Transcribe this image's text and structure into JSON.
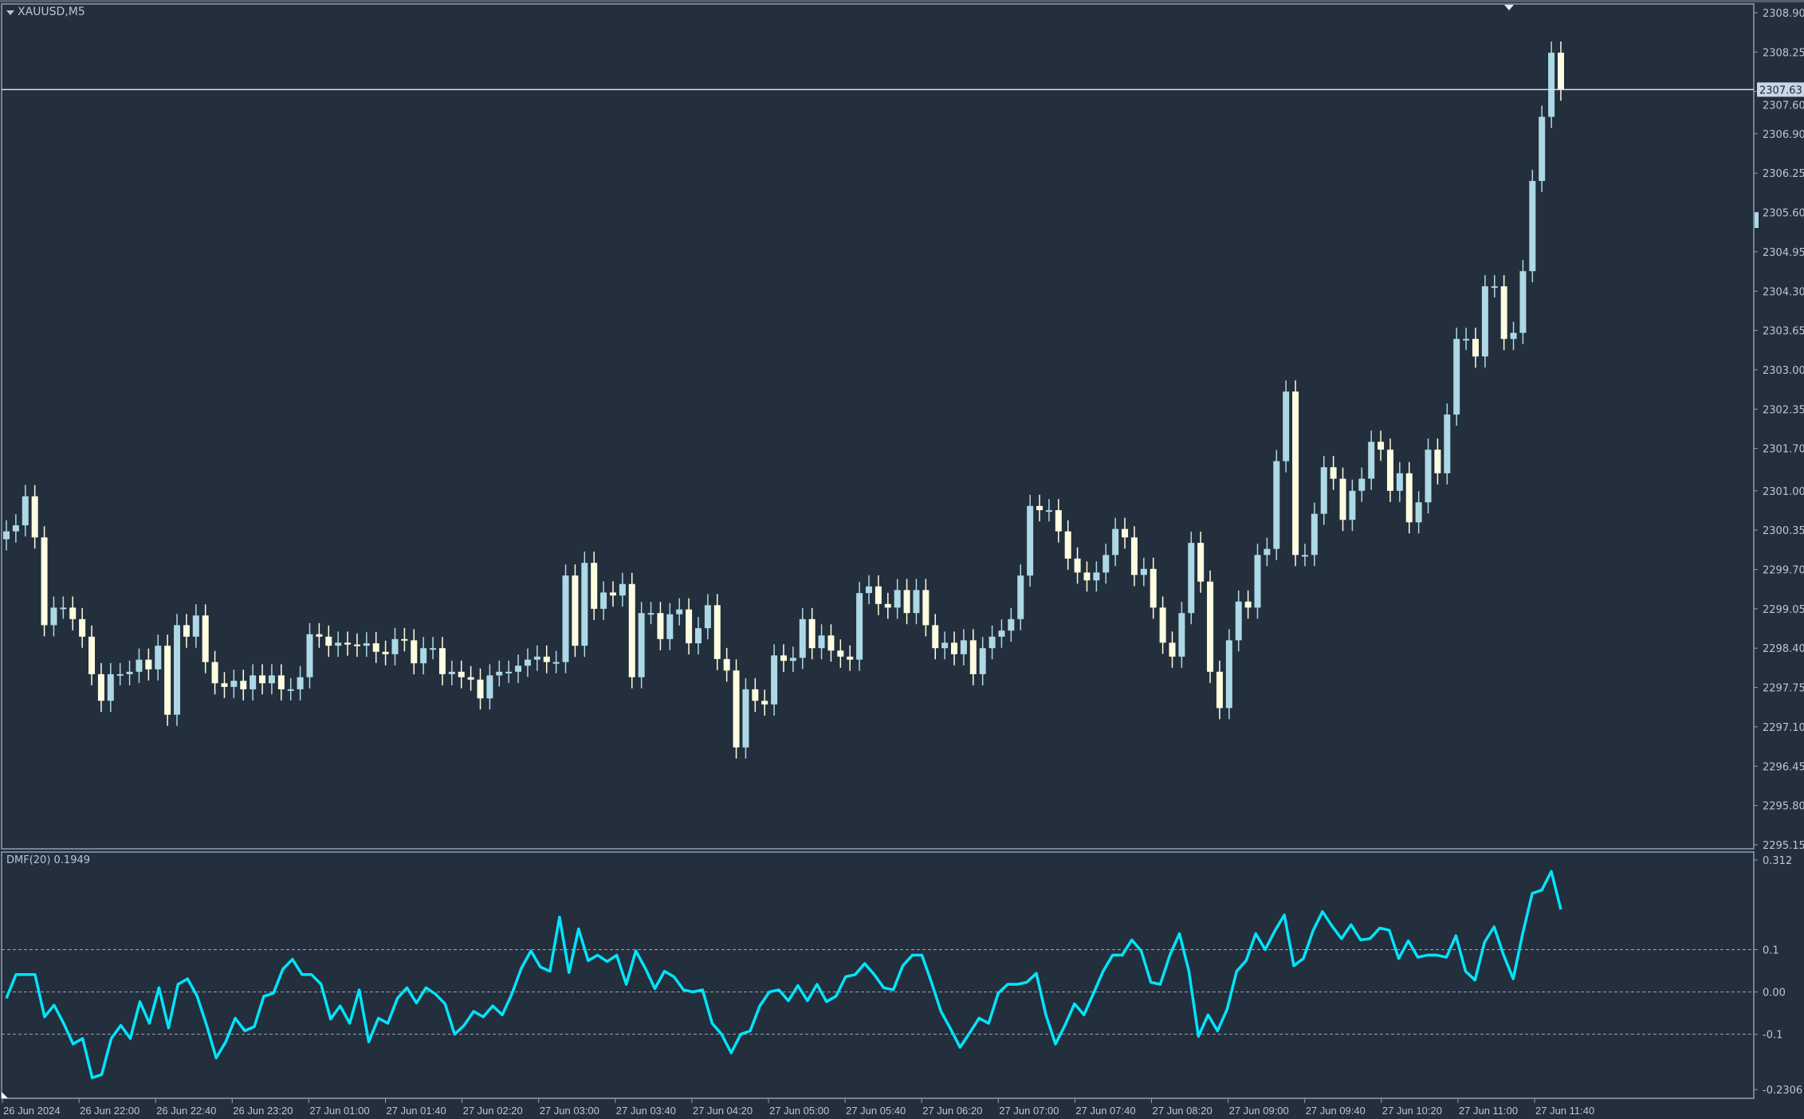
{
  "window": {
    "symbol_label": "XAUUSD,M5",
    "indicator_label": "DMF(20) 0.1949"
  },
  "colors": {
    "background": "#232f3c",
    "bull": "#add8e6",
    "bear": "#fffde0",
    "dmf_line": "#00e5ff",
    "grid_border": "#8f9fb3",
    "price_line": "#d8dde3"
  },
  "chart_data": [
    {
      "type": "candlestick",
      "title": "XAUUSD,M5",
      "current_price": 2307.63,
      "ylim": [
        2295.15,
        2308.9
      ],
      "y_ticks": [
        "2308.90",
        "2308.25",
        "2307.60",
        "2306.90",
        "2306.25",
        "2305.60",
        "2304.95",
        "2304.30",
        "2303.65",
        "2303.00",
        "2302.35",
        "2301.70",
        "2301.00",
        "2300.35",
        "2299.70",
        "2299.05",
        "2298.40",
        "2297.75",
        "2297.10",
        "2296.45",
        "2295.80",
        "2295.15"
      ],
      "x_ticks": [
        "26 Jun 2024",
        "26 Jun 22:00",
        "26 Jun 22:40",
        "26 Jun 23:20",
        "27 Jun 01:00",
        "27 Jun 01:40",
        "27 Jun 02:20",
        "27 Jun 03:00",
        "27 Jun 03:40",
        "27 Jun 04:20",
        "27 Jun 05:00",
        "27 Jun 05:40",
        "27 Jun 06:20",
        "27 Jun 07:00",
        "27 Jun 07:40",
        "27 Jun 08:20",
        "27 Jun 09:00",
        "27 Jun 09:40",
        "27 Jun 10:20",
        "27 Jun 11:00",
        "27 Jun 11:40"
      ],
      "open": [
        2300.2,
        2300.33,
        2300.43,
        2300.91,
        2300.23,
        2298.78,
        2299.07,
        2299.07,
        2298.88,
        2298.59,
        2297.97,
        2297.53,
        2297.97,
        2297.97,
        2298.01,
        2298.21,
        2298.05,
        2298.44,
        2297.3,
        2298.78,
        2298.59,
        2298.94,
        2298.17,
        2297.82,
        2297.76,
        2297.86,
        2297.72,
        2297.95,
        2297.82,
        2297.95,
        2297.72,
        2297.72,
        2297.92,
        2298.63,
        2298.59,
        2298.44,
        2298.49,
        2298.46,
        2298.44,
        2298.48,
        2298.34,
        2298.3,
        2298.55,
        2298.53,
        2298.15,
        2298.4,
        2298.4,
        2297.97,
        2298.01,
        2297.92,
        2297.88,
        2297.57,
        2297.95,
        2298.01,
        2298.01,
        2298.11,
        2298.21,
        2298.26,
        2298.17,
        2298.17,
        2299.6,
        2298.44,
        2299.81,
        2299.05,
        2299.32,
        2299.27,
        2299.46,
        2297.92,
        2298.98,
        2298.98,
        2298.55,
        2298.96,
        2299.04,
        2298.48,
        2298.73,
        2299.11,
        2298.22,
        2298.03,
        2296.76,
        2297.72,
        2297.53,
        2297.47,
        2298.28,
        2298.19,
        2298.24,
        2298.88,
        2298.4,
        2298.61,
        2298.36,
        2298.26,
        2298.21,
        2299.31,
        2299.42,
        2299.13,
        2299.07,
        2299.36,
        2298.98,
        2299.36,
        2298.78,
        2298.4,
        2298.49,
        2298.3,
        2298.53,
        2297.97,
        2298.4,
        2298.59,
        2298.69,
        2298.88,
        2299.6,
        2300.75,
        2300.68,
        2300.68,
        2300.33,
        2299.88,
        2299.65,
        2299.52,
        2299.65,
        2299.94,
        2300.37,
        2300.23,
        2299.61,
        2299.71,
        2299.07,
        2298.49,
        2298.26,
        2298.98,
        2300.14,
        2299.5,
        2298.01,
        2297.41,
        2298.53,
        2299.17,
        2299.07,
        2299.94,
        2300.04,
        2301.49,
        2302.64,
        2299.94,
        2299.94,
        2300.62,
        2301.39,
        2301.2,
        2300.52,
        2301.0,
        2301.2,
        2301.81,
        2301.68,
        2301.0,
        2301.29,
        2300.48,
        2300.81,
        2301.68,
        2301.29,
        2302.26,
        2303.51,
        2303.51,
        2303.22,
        2304.38,
        2304.38,
        2303.51,
        2303.61,
        2304.63,
        2306.12,
        2307.18,
        2308.24
      ],
      "close": [
        2300.33,
        2300.43,
        2300.91,
        2300.23,
        2298.78,
        2299.07,
        2299.07,
        2298.88,
        2298.59,
        2297.97,
        2297.53,
        2297.97,
        2297.97,
        2298.01,
        2298.21,
        2298.05,
        2298.44,
        2297.3,
        2298.78,
        2298.59,
        2298.94,
        2298.17,
        2297.82,
        2297.76,
        2297.86,
        2297.72,
        2297.95,
        2297.82,
        2297.95,
        2297.72,
        2297.72,
        2297.92,
        2298.63,
        2298.59,
        2298.44,
        2298.49,
        2298.46,
        2298.44,
        2298.48,
        2298.34,
        2298.3,
        2298.55,
        2298.53,
        2298.15,
        2298.4,
        2298.4,
        2297.97,
        2298.01,
        2297.92,
        2297.88,
        2297.57,
        2297.95,
        2298.01,
        2298.01,
        2298.11,
        2298.21,
        2298.26,
        2298.17,
        2298.17,
        2299.6,
        2298.44,
        2299.81,
        2299.05,
        2299.32,
        2299.27,
        2299.46,
        2297.92,
        2298.98,
        2298.98,
        2298.55,
        2298.96,
        2299.04,
        2298.48,
        2298.73,
        2299.11,
        2298.22,
        2298.03,
        2296.76,
        2297.72,
        2297.53,
        2297.47,
        2298.28,
        2298.19,
        2298.24,
        2298.88,
        2298.4,
        2298.61,
        2298.36,
        2298.26,
        2298.21,
        2299.31,
        2299.42,
        2299.13,
        2299.07,
        2299.36,
        2298.98,
        2299.36,
        2298.78,
        2298.4,
        2298.49,
        2298.3,
        2298.53,
        2297.97,
        2298.4,
        2298.59,
        2298.69,
        2298.88,
        2299.6,
        2300.75,
        2300.68,
        2300.68,
        2300.33,
        2299.88,
        2299.65,
        2299.52,
        2299.65,
        2299.94,
        2300.37,
        2300.23,
        2299.61,
        2299.71,
        2299.07,
        2298.49,
        2298.26,
        2298.98,
        2300.14,
        2299.5,
        2298.01,
        2297.41,
        2298.53,
        2299.17,
        2299.07,
        2299.94,
        2300.04,
        2301.49,
        2302.64,
        2299.94,
        2299.94,
        2300.62,
        2301.39,
        2301.2,
        2300.52,
        2301.0,
        2301.2,
        2301.81,
        2301.68,
        2301.0,
        2301.29,
        2300.48,
        2300.81,
        2301.68,
        2301.29,
        2302.26,
        2303.51,
        2303.51,
        2303.22,
        2304.38,
        2304.38,
        2303.51,
        2303.61,
        2304.63,
        2306.12,
        2307.18,
        2308.24,
        2307.63
      ]
    },
    {
      "type": "line",
      "title": "DMF(20) 0.1949",
      "current_value": 0.1949,
      "ylim": [
        -0.2306,
        0.312
      ],
      "y_ticks": [
        "0.312",
        "0.1",
        "0.00",
        "-0.1",
        "-0.2306"
      ],
      "levels": [
        0.1,
        0.0,
        -0.1
      ],
      "values": [
        -0.015,
        0.041,
        0.041,
        0.041,
        -0.059,
        -0.031,
        -0.074,
        -0.123,
        -0.11,
        -0.203,
        -0.195,
        -0.11,
        -0.079,
        -0.11,
        -0.023,
        -0.074,
        0.01,
        -0.085,
        0.018,
        0.031,
        -0.01,
        -0.079,
        -0.156,
        -0.118,
        -0.062,
        -0.092,
        -0.082,
        -0.01,
        -0.003,
        0.054,
        0.077,
        0.041,
        0.041,
        0.018,
        -0.064,
        -0.033,
        -0.074,
        0.005,
        -0.118,
        -0.062,
        -0.074,
        -0.015,
        0.01,
        -0.026,
        0.01,
        -0.005,
        -0.028,
        -0.1,
        -0.079,
        -0.046,
        -0.059,
        -0.033,
        -0.054,
        -0.005,
        0.056,
        0.097,
        0.059,
        0.049,
        0.177,
        0.046,
        0.149,
        0.074,
        0.087,
        0.072,
        0.087,
        0.018,
        0.097,
        0.056,
        0.008,
        0.049,
        0.036,
        0.005,
        0.0,
        0.005,
        -0.074,
        -0.1,
        -0.144,
        -0.1,
        -0.092,
        -0.033,
        0.0,
        0.005,
        -0.021,
        0.015,
        -0.021,
        0.018,
        -0.023,
        -0.01,
        0.036,
        0.041,
        0.067,
        0.041,
        0.01,
        0.005,
        0.062,
        0.087,
        0.087,
        0.023,
        -0.046,
        -0.087,
        -0.131,
        -0.097,
        -0.062,
        -0.074,
        -0.003,
        0.018,
        0.018,
        0.023,
        0.044,
        -0.054,
        -0.123,
        -0.079,
        -0.028,
        -0.054,
        -0.003,
        0.049,
        0.087,
        0.087,
        0.123,
        0.097,
        0.023,
        0.018,
        0.087,
        0.138,
        0.049,
        -0.105,
        -0.054,
        -0.092,
        -0.041,
        0.049,
        0.074,
        0.138,
        0.1,
        0.144,
        0.182,
        0.062,
        0.079,
        0.144,
        0.19,
        0.156,
        0.126,
        0.159,
        0.123,
        0.126,
        0.151,
        0.146,
        0.079,
        0.121,
        0.082,
        0.087,
        0.087,
        0.082,
        0.133,
        0.049,
        0.028,
        0.118,
        0.154,
        0.087,
        0.031,
        0.138,
        0.233,
        0.241,
        0.285,
        0.1949
      ]
    }
  ]
}
